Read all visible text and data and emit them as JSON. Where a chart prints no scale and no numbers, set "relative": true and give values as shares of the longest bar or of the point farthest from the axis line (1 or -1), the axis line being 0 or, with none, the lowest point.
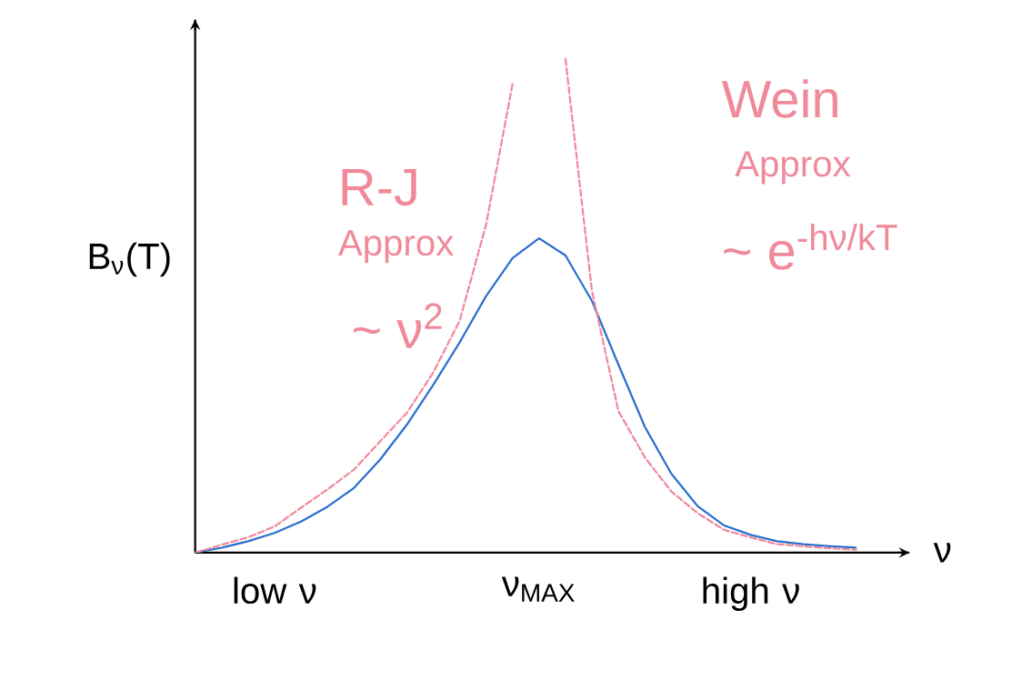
{
  "chart_data": {
    "type": "line",
    "relative": true,
    "ylabel": "B$_{ν}$(T)",
    "xlabel": "ν",
    "categories": [
      null,
      null,
      null,
      "low ν",
      null,
      null,
      null,
      null,
      null,
      null,
      null,
      null,
      null,
      "ν$_{MAX}$",
      null,
      null,
      null,
      null,
      null,
      null,
      null,
      "high ν",
      null,
      null,
      null,
      null
    ],
    "annotations": [
      "R-J",
      "Approx",
      "~ ν$^{2}$",
      "Wein",
      "Approx",
      "~ e$^{-hν/kT}$"
    ],
    "series": [
      {
        "color": "#2a6fce",
        "line_style": "solid",
        "values": [
          0,
          0.01,
          0.023,
          0.04,
          0.063,
          0.093,
          0.131,
          0.189,
          0.259,
          0.34,
          0.426,
          0.52,
          0.597,
          0.637,
          0.602,
          0.51,
          0.381,
          0.255,
          0.16,
          0.094,
          0.055,
          0.036,
          0.023,
          0.017,
          0.013,
          0.01
        ]
      },
      {
        "color": "#f08a9a",
        "line_style": "dashed",
        "values": [
          0,
          0.016,
          0.031,
          0.053,
          0.091,
          0.128,
          0.168,
          0.226,
          0.283,
          0.365,
          0.47,
          0.665,
          0.95,
          null,
          null,
          null,
          null,
          null,
          null,
          null,
          null,
          null,
          null,
          null,
          null,
          null
        ]
      },
      {
        "color": "#f08a9a",
        "line_style": "dashed",
        "values": [
          null,
          null,
          null,
          null,
          null,
          null,
          null,
          null,
          null,
          null,
          null,
          null,
          null,
          null,
          1,
          0.53,
          0.287,
          0.193,
          0.124,
          0.08,
          0.046,
          0.031,
          0.017,
          0.013,
          0.009,
          0.006
        ]
      }
    ]
  }
}
